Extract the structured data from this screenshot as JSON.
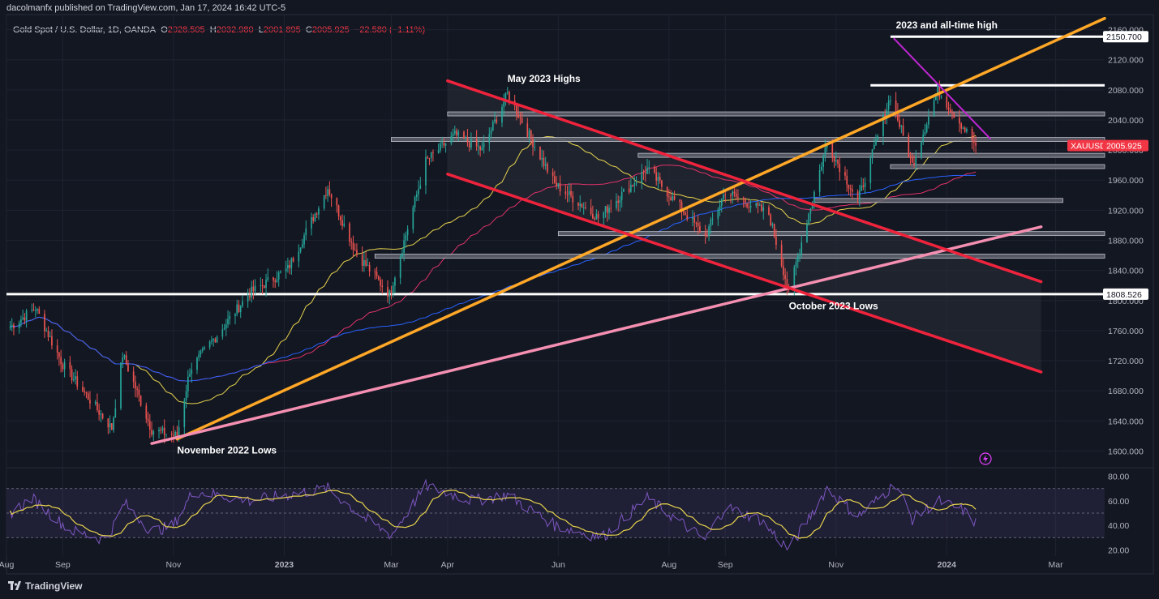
{
  "header": {
    "published": "dacolmanfx published on TradingView.com, Jan 17, 2024 16:42 UTC-5",
    "symbol_desc": "Gold Spot / U.S. Dollar, 1D, OANDA",
    "ohlc": {
      "o_label": "O",
      "o": "2028.505",
      "h_label": "H",
      "h": "2032.980",
      "l_label": "L",
      "l": "2001.895",
      "c_label": "C",
      "c": "2005.925",
      "change": "−22.580 (−1.11%)"
    }
  },
  "footer": {
    "brand": "TradingView"
  },
  "colors": {
    "background": "#131722",
    "up": "#26a69a",
    "down": "#ef5350",
    "ma_short": "#e8d44d",
    "ma_mid": "#e0336a",
    "ma_long": "#2962ff",
    "trend_orange": "#ffa726",
    "channel_red": "#ef233c",
    "trend_pink": "#f48fb1",
    "resistance_purple": "#c026d3",
    "rsi_line": "#7e57c2",
    "rsi_signal": "#e8d44d",
    "price_tag": "#f23645"
  },
  "chart_data": {
    "type": "candlestick",
    "symbol": "XAUUSD",
    "timeframe": "1D",
    "ylim": [
      1580,
      2180
    ],
    "price_ticks": [
      1600,
      1640,
      1680,
      1720,
      1760,
      1800,
      1840,
      1880,
      1920,
      1960,
      2000,
      2040,
      2080,
      2120,
      2160
    ],
    "x_labels": [
      "Aug",
      "Sep",
      "Nov",
      "2023",
      "Mar",
      "Apr",
      "Jun",
      "Aug",
      "Sep",
      "Nov",
      "2024",
      "Mar"
    ],
    "x_label_dates": [
      "2022-08-01",
      "2022-09-01",
      "2022-11-01",
      "2023-01-01",
      "2023-03-01",
      "2023-04-01",
      "2023-06-01",
      "2023-08-01",
      "2023-09-01",
      "2023-11-01",
      "2024-01-01",
      "2024-03-01"
    ],
    "date_range": [
      "2022-08-01",
      "2024-03-28"
    ],
    "price_path": [
      [
        "2022-08-03",
        1765
      ],
      [
        "2022-08-17",
        1790
      ],
      [
        "2022-09-01",
        1715
      ],
      [
        "2022-09-28",
        1630
      ],
      [
        "2022-10-04",
        1728
      ],
      [
        "2022-10-20",
        1628
      ],
      [
        "2022-11-03",
        1620
      ],
      [
        "2022-11-10",
        1708
      ],
      [
        "2022-12-13",
        1810
      ],
      [
        "2023-01-03",
        1842
      ],
      [
        "2023-01-25",
        1950
      ],
      [
        "2023-02-10",
        1862
      ],
      [
        "2023-02-28",
        1808
      ],
      [
        "2023-03-20",
        1985
      ],
      [
        "2023-04-05",
        2020
      ],
      [
        "2023-04-20",
        2000
      ],
      [
        "2023-05-04",
        2075
      ],
      [
        "2023-05-30",
        1955
      ],
      [
        "2023-06-23",
        1910
      ],
      [
        "2023-07-20",
        1975
      ],
      [
        "2023-08-21",
        1885
      ],
      [
        "2023-09-01",
        1945
      ],
      [
        "2023-09-25",
        1915
      ],
      [
        "2023-10-06",
        1812
      ],
      [
        "2023-10-27",
        2010
      ],
      [
        "2023-11-13",
        1932
      ],
      [
        "2023-12-01",
        2072
      ],
      [
        "2023-12-13",
        1980
      ],
      [
        "2023-12-27",
        2080
      ],
      [
        "2024-01-17",
        2005.925
      ]
    ],
    "last_price": 2005.925,
    "price_labels": [
      {
        "text": "2150.700",
        "value": 2150.7
      },
      {
        "text": "XAUUSD",
        "value": 2005.925
      },
      {
        "text": "2005.925",
        "value": 2005.925
      },
      {
        "text": "1808.526",
        "value": 1808.526
      }
    ],
    "annotations": [
      {
        "text": "2023 and all-time high",
        "date": "2023-12-04",
        "value": 2150.7
      },
      {
        "text": "May 2023 Highs",
        "date": "2023-05-04",
        "value": 2080
      },
      {
        "text": "October 2023 Lows",
        "date": "2023-10-06",
        "value": 1808
      },
      {
        "text": "November 2022 Lows",
        "date": "2022-11-03",
        "value": 1616
      }
    ],
    "horizontal_lines": [
      {
        "value": 2150.7,
        "from": "2023-12-01",
        "to": "2024-03-28",
        "style": "line"
      },
      {
        "value": 2086,
        "from": "2023-11-20",
        "to": "2024-03-28",
        "style": "line"
      },
      {
        "value": 1808.526,
        "from": "2022-08-01",
        "to": "2024-03-28",
        "style": "line"
      },
      {
        "value": 2048,
        "from": "2023-04-01",
        "to": "2024-03-28",
        "style": "zone"
      },
      {
        "value": 2014,
        "from": "2023-03-01",
        "to": "2024-03-28",
        "style": "zone"
      },
      {
        "value": 1993,
        "from": "2023-07-15",
        "to": "2024-03-28",
        "style": "zone"
      },
      {
        "value": 1978,
        "from": "2023-12-01",
        "to": "2024-03-28",
        "style": "zone"
      },
      {
        "value": 1933,
        "from": "2023-10-20",
        "to": "2024-03-05",
        "style": "zone"
      },
      {
        "value": 1889,
        "from": "2023-06-01",
        "to": "2024-03-28",
        "style": "zone"
      },
      {
        "value": 1859,
        "from": "2023-02-20",
        "to": "2024-03-28",
        "style": "zone"
      }
    ],
    "trendlines": [
      {
        "name": "orange",
        "points": [
          [
            "2022-11-03",
            1616
          ],
          [
            "2024-03-28",
            2175
          ]
        ]
      },
      {
        "name": "pink",
        "points": [
          [
            "2022-10-20",
            1610
          ],
          [
            "2024-02-22",
            1898
          ]
        ]
      },
      {
        "name": "channel-upper",
        "points": [
          [
            "2023-04-01",
            2092
          ],
          [
            "2024-02-22",
            1825
          ]
        ]
      },
      {
        "name": "channel-lower",
        "points": [
          [
            "2023-04-01",
            1968
          ],
          [
            "2024-02-22",
            1705
          ]
        ]
      },
      {
        "name": "purple",
        "points": [
          [
            "2023-12-03",
            2148
          ],
          [
            "2024-01-25",
            2015
          ]
        ]
      }
    ],
    "rsi": {
      "ylim": [
        15,
        85
      ],
      "ticks": [
        20,
        40,
        60,
        80
      ],
      "band": [
        30,
        70
      ],
      "path": [
        [
          "2022-08-01",
          48
        ],
        [
          "2022-08-15",
          62
        ],
        [
          "2022-09-05",
          36
        ],
        [
          "2022-09-25",
          28
        ],
        [
          "2022-10-05",
          58
        ],
        [
          "2022-10-20",
          35
        ],
        [
          "2022-11-01",
          40
        ],
        [
          "2022-11-12",
          68
        ],
        [
          "2022-12-13",
          60
        ],
        [
          "2023-01-25",
          70
        ],
        [
          "2023-02-15",
          45
        ],
        [
          "2023-03-01",
          32
        ],
        [
          "2023-03-20",
          72
        ],
        [
          "2023-04-15",
          60
        ],
        [
          "2023-05-04",
          65
        ],
        [
          "2023-05-30",
          40
        ],
        [
          "2023-06-25",
          30
        ],
        [
          "2023-07-20",
          62
        ],
        [
          "2023-08-21",
          28
        ],
        [
          "2023-09-01",
          55
        ],
        [
          "2023-09-20",
          45
        ],
        [
          "2023-10-06",
          20
        ],
        [
          "2023-10-27",
          70
        ],
        [
          "2023-11-13",
          47
        ],
        [
          "2023-12-04",
          74
        ],
        [
          "2023-12-13",
          45
        ],
        [
          "2023-12-27",
          60
        ],
        [
          "2024-01-10",
          52
        ],
        [
          "2024-01-17",
          42
        ]
      ]
    }
  }
}
